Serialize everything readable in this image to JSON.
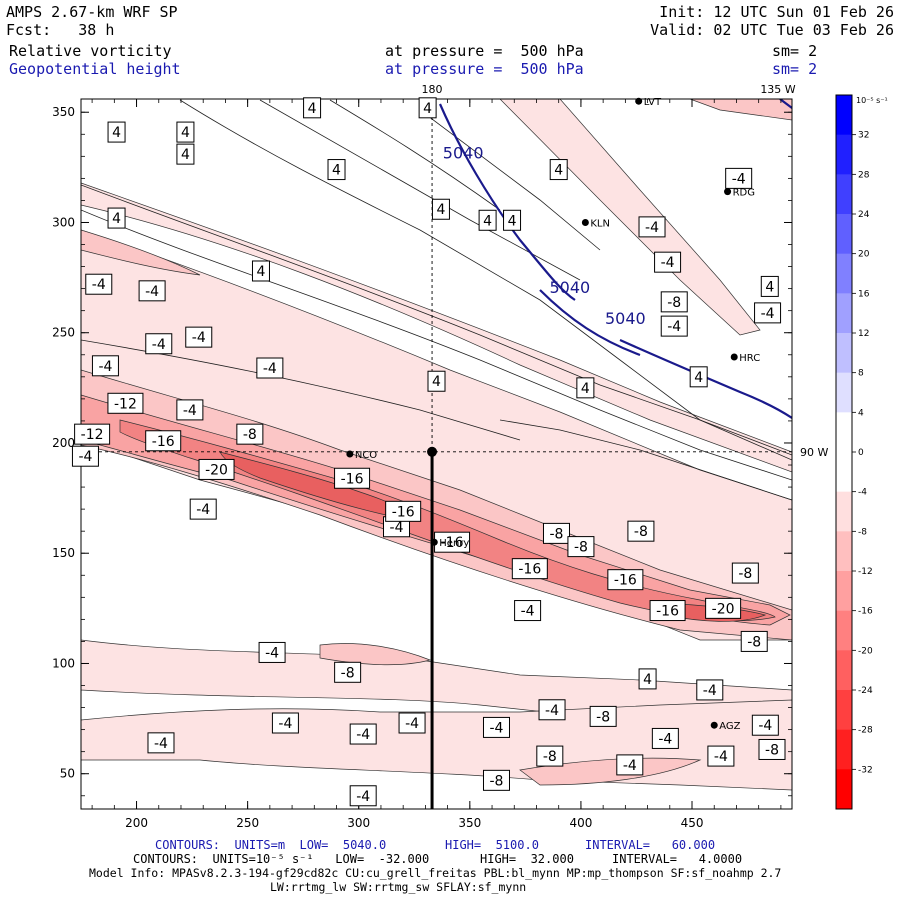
{
  "header": {
    "left_line1": "AMPS 2.67-km WRF SP",
    "left_line2": "Fcst:   38 h",
    "right_line1": "Init: 12 UTC Sun 01 Feb 26",
    "right_line2": "Valid: 02 UTC Tue 03 Feb 26",
    "field1_name": "Relative vorticity",
    "field1_level": "at pressure =  500 hPa",
    "field1_sm": "sm= 2",
    "field2_name": "Geopotential height",
    "field2_level": "at pressure =  500 hPa",
    "field2_sm": "sm= 2"
  },
  "chart_data": {
    "type": "contour-map",
    "x_ticks": [
      200,
      250,
      300,
      350,
      400,
      450
    ],
    "y_ticks": [
      50,
      100,
      150,
      200,
      250,
      300,
      350
    ],
    "xlim": [
      175,
      495
    ],
    "ylim": [
      34,
      356
    ],
    "meridian_180_x": 333,
    "lat_line_y": 196,
    "top_labels": {
      "lon_180": "180",
      "lon_135w": "135 W"
    },
    "right_label": "90 W",
    "colorbar": {
      "unit": "10⁻⁵ s⁻¹",
      "ticks": [
        32,
        28,
        24,
        20,
        16,
        12,
        8,
        4,
        0,
        -4,
        -8,
        -12,
        -16,
        -20,
        -24,
        -28,
        -32
      ],
      "positive_color": "#0000ff",
      "negative_color": "#ff0000"
    },
    "stations": [
      {
        "name": "LVT",
        "x": 426,
        "y": 355
      },
      {
        "name": "RDG",
        "x": 466,
        "y": 314
      },
      {
        "name": "KLN",
        "x": 402,
        "y": 300
      },
      {
        "name": "HRC",
        "x": 469,
        "y": 239
      },
      {
        "name": "NCO",
        "x": 296,
        "y": 195
      },
      {
        "name": "Henry",
        "x": 334,
        "y": 155
      },
      {
        "name": "AGZ",
        "x": 460,
        "y": 72
      }
    ],
    "height_labels": [
      {
        "text": "5040",
        "x": 347,
        "y": 329
      },
      {
        "text": "5040",
        "x": 395,
        "y": 268
      },
      {
        "text": "5040",
        "x": 420,
        "y": 254
      }
    ],
    "vorticity_labels": [
      {
        "v": "4",
        "x": 191,
        "y": 341
      },
      {
        "v": "4",
        "x": 222,
        "y": 341
      },
      {
        "v": "4",
        "x": 279,
        "y": 352
      },
      {
        "v": "4",
        "x": 331,
        "y": 352
      },
      {
        "v": "4",
        "x": 222,
        "y": 331
      },
      {
        "v": "4",
        "x": 290,
        "y": 324
      },
      {
        "v": "4",
        "x": 390,
        "y": 324
      },
      {
        "v": "4",
        "x": 337,
        "y": 306
      },
      {
        "v": "4",
        "x": 358,
        "y": 301
      },
      {
        "v": "4",
        "x": 369,
        "y": 301
      },
      {
        "v": "4",
        "x": 191,
        "y": 302
      },
      {
        "v": "4",
        "x": 256,
        "y": 278
      },
      {
        "v": "4",
        "x": 485,
        "y": 271
      },
      {
        "v": "4",
        "x": 453,
        "y": 230
      },
      {
        "v": "4",
        "x": 335,
        "y": 228
      },
      {
        "v": "4",
        "x": 430,
        "y": 93
      },
      {
        "v": "4",
        "x": 402,
        "y": 225
      },
      {
        "v": "-4",
        "x": 183,
        "y": 272
      },
      {
        "v": "-4",
        "x": 207,
        "y": 269
      },
      {
        "v": "-4",
        "x": 210,
        "y": 245
      },
      {
        "v": "-4",
        "x": 228,
        "y": 248
      },
      {
        "v": "-4",
        "x": 186,
        "y": 235
      },
      {
        "v": "-4",
        "x": 260,
        "y": 234
      },
      {
        "v": "-4",
        "x": 224,
        "y": 215
      },
      {
        "v": "-4",
        "x": 177,
        "y": 194
      },
      {
        "v": "-4",
        "x": 230,
        "y": 170
      },
      {
        "v": "-4",
        "x": 317,
        "y": 162
      },
      {
        "v": "-4",
        "x": 432,
        "y": 298
      },
      {
        "v": "-4",
        "x": 471,
        "y": 320
      },
      {
        "v": "-4",
        "x": 439,
        "y": 282
      },
      {
        "v": "-4",
        "x": 484,
        "y": 259
      },
      {
        "v": "-4",
        "x": 442,
        "y": 253
      },
      {
        "v": "-4",
        "x": 261,
        "y": 105
      },
      {
        "v": "-4",
        "x": 376,
        "y": 124
      },
      {
        "v": "-4",
        "x": 458,
        "y": 88
      },
      {
        "v": "-4",
        "x": 387,
        "y": 79
      },
      {
        "v": "-4",
        "x": 324,
        "y": 73
      },
      {
        "v": "-4",
        "x": 267,
        "y": 73
      },
      {
        "v": "-4",
        "x": 302,
        "y": 68
      },
      {
        "v": "-4",
        "x": 362,
        "y": 71
      },
      {
        "v": "-4",
        "x": 211,
        "y": 64
      },
      {
        "v": "-4",
        "x": 438,
        "y": 66
      },
      {
        "v": "-4",
        "x": 483,
        "y": 72
      },
      {
        "v": "-4",
        "x": 422,
        "y": 54
      },
      {
        "v": "-4",
        "x": 463,
        "y": 58
      },
      {
        "v": "-4",
        "x": 302,
        "y": 40
      },
      {
        "v": "-8",
        "x": 251,
        "y": 204
      },
      {
        "v": "-8",
        "x": 427,
        "y": 160
      },
      {
        "v": "-8",
        "x": 389,
        "y": 159
      },
      {
        "v": "-8",
        "x": 400,
        "y": 153
      },
      {
        "v": "-8",
        "x": 442,
        "y": 264
      },
      {
        "v": "-8",
        "x": 474,
        "y": 141
      },
      {
        "v": "-8",
        "x": 478,
        "y": 110
      },
      {
        "v": "-8",
        "x": 295,
        "y": 96
      },
      {
        "v": "-8",
        "x": 410,
        "y": 76
      },
      {
        "v": "-8",
        "x": 386,
        "y": 58
      },
      {
        "v": "-8",
        "x": 486,
        "y": 61
      },
      {
        "v": "-8",
        "x": 362,
        "y": 47
      },
      {
        "v": "-12",
        "x": 195,
        "y": 218
      },
      {
        "v": "-12",
        "x": 180,
        "y": 204
      },
      {
        "v": "-16",
        "x": 212,
        "y": 201
      },
      {
        "v": "-16",
        "x": 297,
        "y": 184
      },
      {
        "v": "-16",
        "x": 320,
        "y": 169
      },
      {
        "v": "-16",
        "x": 342,
        "y": 155
      },
      {
        "v": "-16",
        "x": 377,
        "y": 143
      },
      {
        "v": "-16",
        "x": 420,
        "y": 138
      },
      {
        "v": "-16",
        "x": 439,
        "y": 124
      },
      {
        "v": "-20",
        "x": 236,
        "y": 188
      },
      {
        "v": "-20",
        "x": 464,
        "y": 125
      }
    ]
  },
  "footer": {
    "line1_left": "CONTOURS:  UNITS=m  LOW=  5040.0",
    "line1_high": "HIGH=  5100.0",
    "line1_int": "INTERVAL=   60.000",
    "line2_left": "CONTOURS:  UNITS=10⁻⁵ s⁻¹   LOW=  -32.000",
    "line2_high": "HIGH=  32.000",
    "line2_int": "INTERVAL=   4.0000",
    "line3": "Model Info: MPASv8.2.3-194-gf29cd82c CU:cu_grell_freitas PBL:bl_mynn MP:mp_thompson SF:sf_noahmp 2.7",
    "line4": "LW:rrtmg_lw SW:rrtmg_sw SFLAY:sf_mynn"
  }
}
